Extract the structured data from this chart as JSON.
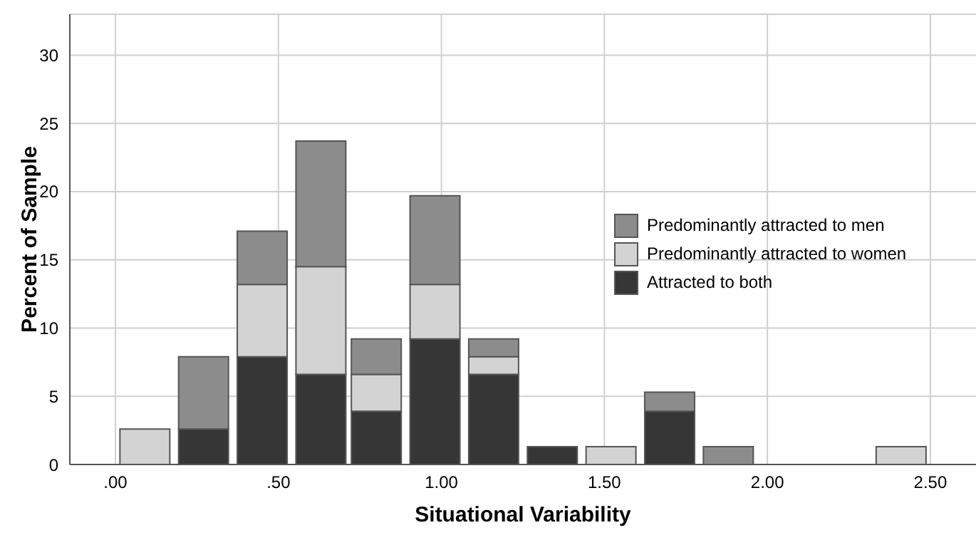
{
  "chart_data": {
    "type": "bar",
    "xlabel": "Situational Variability",
    "ylabel": "Percent of Sample",
    "x": [
      0.09,
      0.27,
      0.45,
      0.63,
      0.8,
      0.98,
      1.16,
      1.34,
      1.52,
      1.7,
      1.88,
      2.05,
      2.23,
      2.41
    ],
    "stacked": true,
    "series": [
      {
        "name": "Attracted to both",
        "color": "#363636",
        "values": [
          0,
          2.6,
          7.9,
          6.6,
          3.9,
          9.2,
          6.6,
          1.3,
          0,
          3.9,
          0,
          0,
          0,
          0
        ]
      },
      {
        "name": "Predominantly attracted to women",
        "color": "#d3d3d3",
        "values": [
          2.6,
          0,
          5.3,
          7.9,
          2.7,
          4.0,
          1.3,
          0,
          1.3,
          0,
          0,
          0,
          0,
          1.3
        ]
      },
      {
        "name": "Predominantly attracted to men",
        "color": "#8c8c8c",
        "values": [
          0,
          5.3,
          3.9,
          9.2,
          2.6,
          6.5,
          1.3,
          0,
          0,
          1.4,
          1.3,
          0,
          0,
          0
        ]
      }
    ],
    "xlim": [
      -0.14,
      2.64
    ],
    "ylim": [
      0,
      33
    ],
    "xticks": [
      {
        "value": 0,
        "label": ".00"
      },
      {
        "value": 0.5,
        "label": ".50"
      },
      {
        "value": 1,
        "label": "1.00"
      },
      {
        "value": 1.5,
        "label": "1.50"
      },
      {
        "value": 2,
        "label": "2.00"
      },
      {
        "value": 2.5,
        "label": "2.50"
      }
    ],
    "yticks": [
      0,
      5,
      10,
      15,
      20,
      25,
      30
    ],
    "grid": true,
    "legend": "right"
  }
}
